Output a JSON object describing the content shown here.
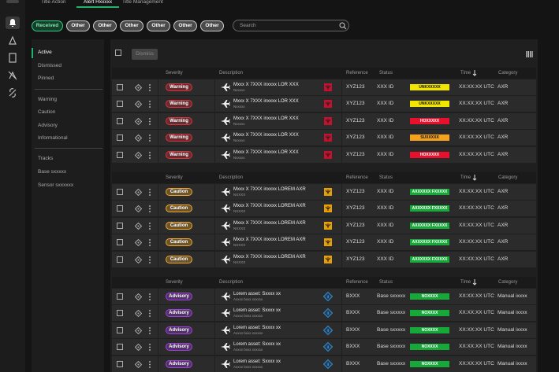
{
  "tabs": [
    "Title Action",
    "Alert Hxxxxx",
    "Title Management"
  ],
  "filters": [
    "Received",
    "Other",
    "Other",
    "Other",
    "Other",
    "Other",
    "Other"
  ],
  "search": "Search",
  "nav": {
    "status": [
      "Active",
      "Dismissed",
      "Pinned"
    ],
    "severity": [
      "Warning",
      "Caution",
      "Advisory",
      "Informational"
    ],
    "sources": [
      "Tracks",
      "Base sxxxxx",
      "Sensor sxxxxxx"
    ]
  },
  "toolbar": {
    "dismiss": "Dismiss"
  },
  "groups": [
    {
      "columns": [
        "Severity",
        "Description",
        "Reference",
        "Status",
        "Time",
        "Category"
      ],
      "severity_color": "#e0303c",
      "ref_color": "#c8102e",
      "rows": [
        {
          "severity": "Warning",
          "title": "Mxxx X 7XXX inxxxx LOR XXX",
          "subtitle": "Nxxxxx",
          "reference": "XYZ123",
          "status": "XXX ID",
          "badge": "UNKXXXXX",
          "badge_color": "#f2e500",
          "badge_text": "#111",
          "time": "XX:XX:XX UTC",
          "category": "AXR"
        },
        {
          "severity": "Warning",
          "title": "Mxxx X 7XXX inxxxx LOR XXX",
          "subtitle": "Nxxxxx",
          "reference": "XYZ123",
          "status": "XXX ID",
          "badge": "UNKXXXXX",
          "badge_color": "#f2e500",
          "badge_text": "#111",
          "time": "XX:XX:XX UTC",
          "category": "AXR"
        },
        {
          "severity": "Warning",
          "title": "Mxxx X 7XXX inxxxx LOR XXX",
          "subtitle": "Nxxxxx",
          "reference": "XYZ123",
          "status": "XXX ID",
          "badge": "HOXXXXX",
          "badge_color": "#e8102c",
          "badge_text": "#fff",
          "time": "XX:XX:XX UTC",
          "category": "AXR"
        },
        {
          "severity": "Warning",
          "title": "Mxxx X 7XXX inxxxx LOR XXX",
          "subtitle": "Nxxxxx",
          "reference": "XYZ123",
          "status": "XXX ID",
          "badge": "SUXXXXX",
          "badge_color": "#f7a21b",
          "badge_text": "#111",
          "time": "XX:XX:XX UTC",
          "category": "AXR"
        },
        {
          "severity": "Warning",
          "title": "Mxxx X 7XXX inxxxx LOR XXX",
          "subtitle": "Nxxxxx",
          "reference": "XYZ123",
          "status": "XXX ID",
          "badge": "HOXXXXX",
          "badge_color": "#e8102c",
          "badge_text": "#fff",
          "time": "XX:XX:XX UTC",
          "category": "AXR"
        }
      ]
    },
    {
      "columns": [
        "Severity",
        "Description",
        "Reference",
        "Status",
        "Time",
        "Category"
      ],
      "severity_color": "#f0a830",
      "ref_color": "#e8a000",
      "rows": [
        {
          "severity": "Caution",
          "title": "Mxxx X 7XXX inxxxx LOREM AXR",
          "subtitle": "NXXXX",
          "reference": "XYZ123",
          "status": "XXX ID",
          "badge": "AXXXXXX FXXXXX",
          "badge_color": "#17a83a",
          "badge_text": "#fff",
          "time": "XX:XX:XX UTC",
          "category": "AXR"
        },
        {
          "severity": "Caution",
          "title": "Mxxx X 7XXX inxxxx LOREM AXR",
          "subtitle": "NXXXX",
          "reference": "XYZ123",
          "status": "XXX ID",
          "badge": "AXXXXXX FXXXXX",
          "badge_color": "#17a83a",
          "badge_text": "#fff",
          "time": "XX:XX:XX UTC",
          "category": "AXR"
        },
        {
          "severity": "Caution",
          "title": "Mxxx X 7XXX inxxxx LOREM AXR",
          "subtitle": "NXXXX",
          "reference": "XYZ123",
          "status": "XXX ID",
          "badge": "AXXXXXX FXXXXX",
          "badge_color": "#17a83a",
          "badge_text": "#fff",
          "time": "XX:XX:XX UTC",
          "category": "AXR"
        },
        {
          "severity": "Caution",
          "title": "Mxxx X 7XXX inxxxx LOREM AXR",
          "subtitle": "NXXXX",
          "reference": "XYZ123",
          "status": "XXX ID",
          "badge": "AXXXXXX FXXXXX",
          "badge_color": "#17a83a",
          "badge_text": "#fff",
          "time": "XX:XX:XX UTC",
          "category": "AXR"
        },
        {
          "severity": "Caution",
          "title": "Mxxx X 7XXX inxxxx LOREM AXR",
          "subtitle": "NXXXX",
          "reference": "XYZ123",
          "status": "XXX ID",
          "badge": "AXXXXXX FXXXXX",
          "badge_color": "#17a83a",
          "badge_text": "#fff",
          "time": "XX:XX:XX UTC",
          "category": "AXR"
        }
      ]
    },
    {
      "columns": [
        "Severity",
        "Description",
        "Reference",
        "Status",
        "Time",
        "Category"
      ],
      "severity_color": "#a040e0",
      "ref_color": "#2f8fd8",
      "rows": [
        {
          "severity": "Advisory",
          "title": "Lorem asset: Sxxxx xx",
          "subtitle": "Axxxx bxxx xxxxxx",
          "reference": "BXXX",
          "status": "Base sxxxxx",
          "badge": "NOXXXX",
          "badge_color": "#17a83a",
          "badge_text": "#fff",
          "time": "XX:XX:XX UTC",
          "category": "Manual ixxxx"
        },
        {
          "severity": "Advisory",
          "title": "Lorem asset: Sxxxx xx",
          "subtitle": "Axxxx bxxx xxxxxx",
          "reference": "BXXX",
          "status": "Base sxxxxx",
          "badge": "NOXXXX",
          "badge_color": "#17a83a",
          "badge_text": "#fff",
          "time": "XX:XX:XX UTC",
          "category": "Manual ixxxx"
        },
        {
          "severity": "Advisory",
          "title": "Lorem asset: Sxxxx xx",
          "subtitle": "Axxxx bxxx xxxxxx",
          "reference": "BXXX",
          "status": "Base sxxxxx",
          "badge": "NOXXXX",
          "badge_color": "#17a83a",
          "badge_text": "#fff",
          "time": "XX:XX:XX UTC",
          "category": "Manual ixxxx"
        },
        {
          "severity": "Advisory",
          "title": "Lorem asset: Sxxxx xx",
          "subtitle": "Axxxx bxxx xxxxxx",
          "reference": "BXXX",
          "status": "Base sxxxxx",
          "badge": "NOXXXX",
          "badge_color": "#17a83a",
          "badge_text": "#fff",
          "time": "XX:XX:XX UTC",
          "category": "Manual ixxxx"
        },
        {
          "severity": "Advisory",
          "title": "Lorem asset: Sxxxx xx",
          "subtitle": "Axxxx bxxx xxxxxx",
          "reference": "BXXX",
          "status": "Base sxxxxx",
          "badge": "NOXXXX",
          "badge_color": "#17a83a",
          "badge_text": "#fff",
          "time": "XX:XX:XX UTC",
          "category": "Manual ixxxx"
        }
      ]
    }
  ]
}
